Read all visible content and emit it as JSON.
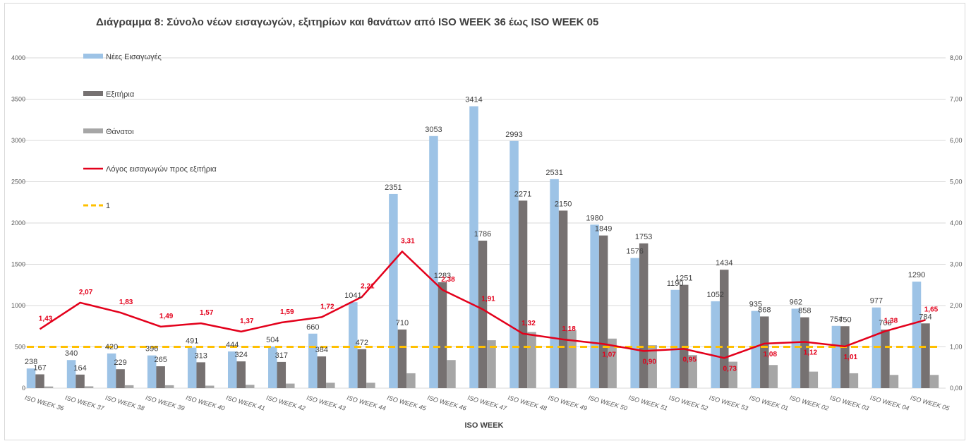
{
  "chart_data": {
    "type": "bar",
    "title": "Διάγραμμα 8: Σύνολο νέων εισαγωγών, εξιτηρίων και θανάτων από ISO WEEK 36 έως ISO WEEK 05",
    "xlabel": "ISO WEEK",
    "ylabel": "",
    "ylim": [
      0,
      4000
    ],
    "y2lim": [
      0,
      8
    ],
    "y_ticks": [
      "0",
      "500",
      "1000",
      "1500",
      "2000",
      "2500",
      "3000",
      "3500",
      "4000"
    ],
    "y2_ticks": [
      "0,00",
      "1,00",
      "2,00",
      "3,00",
      "4,00",
      "5,00",
      "6,00",
      "7,00",
      "8,00"
    ],
    "grid": true,
    "legend_position": "top-left",
    "categories": [
      "ISO WEEK 36",
      "ISO WEEK 37",
      "ISO WEEK 38",
      "ISO WEEK 39",
      "ISO WEEK 40",
      "ISO WEEK 41",
      "ISO WEEK 42",
      "ISO WEEK 43",
      "ISO WEEK 44",
      "ISO WEEK 45",
      "ISO WEEK 46",
      "ISO WEEK 47",
      "ISO WEEK 48",
      "ISO WEEK 49",
      "ISO WEEK 50",
      "ISO WEEK 51",
      "ISO WEEK 52",
      "ISO WEEK 53",
      "ISO WEEK 01",
      "ISO WEEK 02",
      "ISO WEEK 03",
      "ISO WEEK 04",
      "ISO WEEK 05"
    ],
    "series": [
      {
        "name": "Νέες Εισαγωγές",
        "type": "bar",
        "color": "#9dc3e6",
        "values": [
          238,
          340,
          420,
          396,
          491,
          444,
          504,
          660,
          1041,
          2351,
          3053,
          3414,
          2993,
          2531,
          1980,
          1576,
          1190,
          1052,
          935,
          962,
          754,
          977,
          1290
        ],
        "labels": [
          "238",
          "340",
          "420",
          "396",
          "491",
          "444",
          "504",
          "660",
          "1041",
          "2351",
          "3053",
          "3414",
          "2993",
          "2531",
          "1980",
          "1576",
          "1190",
          "1052",
          "935",
          "962",
          "754",
          "977",
          "1290"
        ]
      },
      {
        "name": "Εξιτήρια",
        "type": "bar",
        "color": "#767171",
        "values": [
          167,
          164,
          229,
          265,
          313,
          324,
          317,
          384,
          472,
          710,
          1283,
          1786,
          2271,
          2150,
          1849,
          1753,
          1251,
          1434,
          868,
          858,
          750,
          708,
          784
        ],
        "labels": [
          "167",
          "164",
          "229",
          "265",
          "313",
          "324",
          "317",
          "384",
          "472",
          "710",
          "1283",
          "1786",
          "2271",
          "2150",
          "1849",
          "1753",
          "1251",
          "1434",
          "868",
          "858",
          "750",
          "708",
          "784"
        ]
      },
      {
        "name": "Θάνατοι",
        "type": "bar",
        "color": "#a6a6a6",
        "values": [
          20,
          22,
          35,
          35,
          30,
          40,
          55,
          65,
          65,
          180,
          340,
          580,
          680,
          700,
          600,
          520,
          400,
          320,
          280,
          200,
          180,
          160,
          160
        ]
      },
      {
        "name": "Λόγος εισαγωγών προς εξιτήρια",
        "type": "line",
        "axis": "secondary",
        "color": "#e3001b",
        "values": [
          1.43,
          2.07,
          1.83,
          1.49,
          1.57,
          1.37,
          1.59,
          1.72,
          2.21,
          3.31,
          2.38,
          1.91,
          1.32,
          1.18,
          1.07,
          0.9,
          0.95,
          0.73,
          1.08,
          1.12,
          1.01,
          1.38,
          1.65
        ],
        "labels": [
          "1,43",
          "2,07",
          "1,83",
          "1,49",
          "1,57",
          "1,37",
          "1,59",
          "1,72",
          "2,21",
          "3,31",
          "2,38",
          "1,91",
          "1,32",
          "1,18",
          "1,07",
          "0,90",
          "0,95",
          "0,73",
          "1,08",
          "1,12",
          "1,01",
          "1,38",
          "1,65"
        ]
      },
      {
        "name": "1",
        "type": "line",
        "axis": "secondary",
        "style": "dashed",
        "color": "#ffc000",
        "values": [
          1,
          1,
          1,
          1,
          1,
          1,
          1,
          1,
          1,
          1,
          1,
          1,
          1,
          1,
          1,
          1,
          1,
          1,
          1,
          1,
          1,
          1,
          1
        ]
      }
    ]
  }
}
